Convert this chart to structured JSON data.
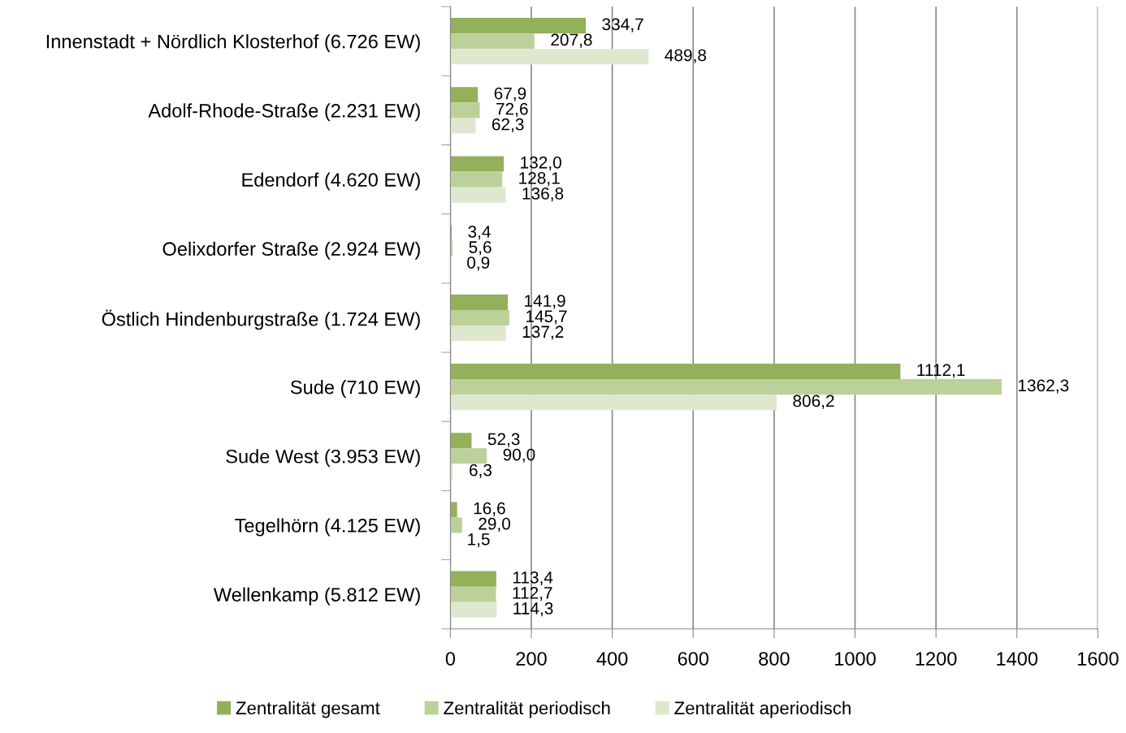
{
  "chart_data": {
    "type": "bar",
    "orientation": "horizontal",
    "categories": [
      "Innenstadt + Nördlich Klosterhof (6.726 EW)",
      "Adolf-Rhode-Straße (2.231 EW)",
      "Edendorf (4.620 EW)",
      "Oelixdorfer Straße (2.924 EW)",
      "Östlich Hindenburgstraße (1.724 EW)",
      "Sude (710 EW)",
      "Sude West (3.953 EW)",
      "Tegelhörn (4.125 EW)",
      "Wellenkamp (5.812 EW)"
    ],
    "series": [
      {
        "name": "Zentralität gesamt",
        "color": "#93b05a",
        "values": [
          334.7,
          67.9,
          132.0,
          3.4,
          141.9,
          1112.1,
          52.3,
          16.6,
          113.4
        ],
        "value_labels": [
          "334,7",
          "67,9",
          "132,0",
          "3,4",
          "141,9",
          "1112,1",
          "52,3",
          "16,6",
          "113,4"
        ]
      },
      {
        "name": "Zentralität periodisch",
        "color": "#bcd19a",
        "values": [
          207.8,
          72.6,
          128.1,
          5.6,
          145.7,
          1362.3,
          90.0,
          29.0,
          112.7
        ],
        "value_labels": [
          "207,8",
          "72,6",
          "128,1",
          "5,6",
          "145,7",
          "1362,3",
          "90,0",
          "29,0",
          "112,7"
        ]
      },
      {
        "name": "Zentralität aperiodisch",
        "color": "#dde8cf",
        "values": [
          489.8,
          62.3,
          136.8,
          0.9,
          137.2,
          806.2,
          6.3,
          1.5,
          114.3
        ],
        "value_labels": [
          "489,8",
          "62,3",
          "136,8",
          "0,9",
          "137,2",
          "806,2",
          "6,3",
          "1,5",
          "114,3"
        ]
      }
    ],
    "xlim": [
      0,
      1600
    ],
    "xticks": [
      0,
      200,
      400,
      600,
      800,
      1000,
      1200,
      1400,
      1600
    ],
    "grid": "x",
    "legend": "bottom"
  }
}
